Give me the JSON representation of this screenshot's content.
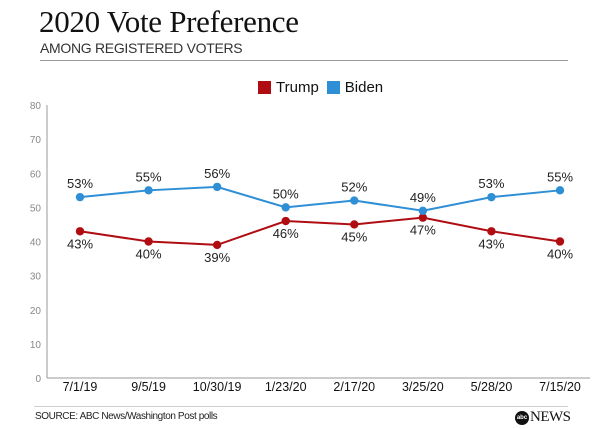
{
  "header": {
    "title": "2020 Vote Preference",
    "subtitle": "AMONG REGISTERED VOTERS"
  },
  "footer": {
    "source": "SOURCE: ABC News/Washington Post polls",
    "logo_mark": "abc",
    "logo_text": "NEWS"
  },
  "chart_data": {
    "type": "line",
    "title": "2020 Vote Preference",
    "subtitle": "AMONG REGISTERED VOTERS",
    "xlabel": "",
    "ylabel": "",
    "categories": [
      "7/1/19",
      "9/5/19",
      "10/30/19",
      "1/23/20",
      "2/17/20",
      "3/25/20",
      "5/28/20",
      "7/15/20"
    ],
    "ylim": [
      0,
      80
    ],
    "yticks": [
      0,
      10,
      20,
      30,
      40,
      50,
      60,
      70,
      80
    ],
    "grid": false,
    "legend_position": "top-center",
    "series": [
      {
        "name": "Trump",
        "color": "#b00d12",
        "values": [
          43,
          40,
          39,
          46,
          45,
          47,
          43,
          40
        ],
        "labels": [
          "43%",
          "40%",
          "39%",
          "46%",
          "45%",
          "47%",
          "43%",
          "40%"
        ]
      },
      {
        "name": "Biden",
        "color": "#2f8fd6",
        "values": [
          53,
          55,
          56,
          50,
          52,
          49,
          53,
          55
        ],
        "labels": [
          "53%",
          "55%",
          "56%",
          "50%",
          "52%",
          "49%",
          "53%",
          "55%"
        ]
      }
    ]
  }
}
